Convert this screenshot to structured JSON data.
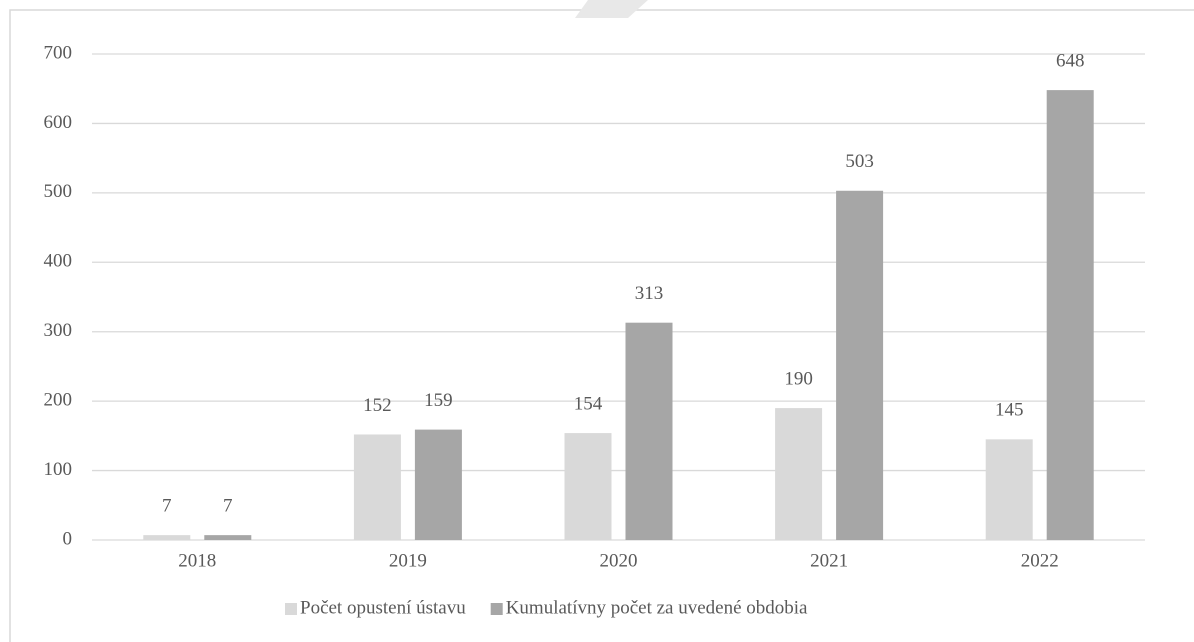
{
  "chart_data": {
    "type": "bar",
    "categories": [
      "2018",
      "2019",
      "2020",
      "2021",
      "2022"
    ],
    "series": [
      {
        "name": "Počet opustení ústavu",
        "color": "#d9d9d9",
        "values": [
          7,
          152,
          154,
          190,
          145
        ]
      },
      {
        "name": "Kumulatívny počet za uvedené obdobia",
        "color": "#a6a6a6",
        "values": [
          7,
          159,
          313,
          503,
          648
        ]
      }
    ],
    "ylim": [
      0,
      700
    ],
    "yticks": [
      0,
      100,
      200,
      300,
      400,
      500,
      600,
      700
    ],
    "grid": true,
    "legend": "bottom"
  }
}
